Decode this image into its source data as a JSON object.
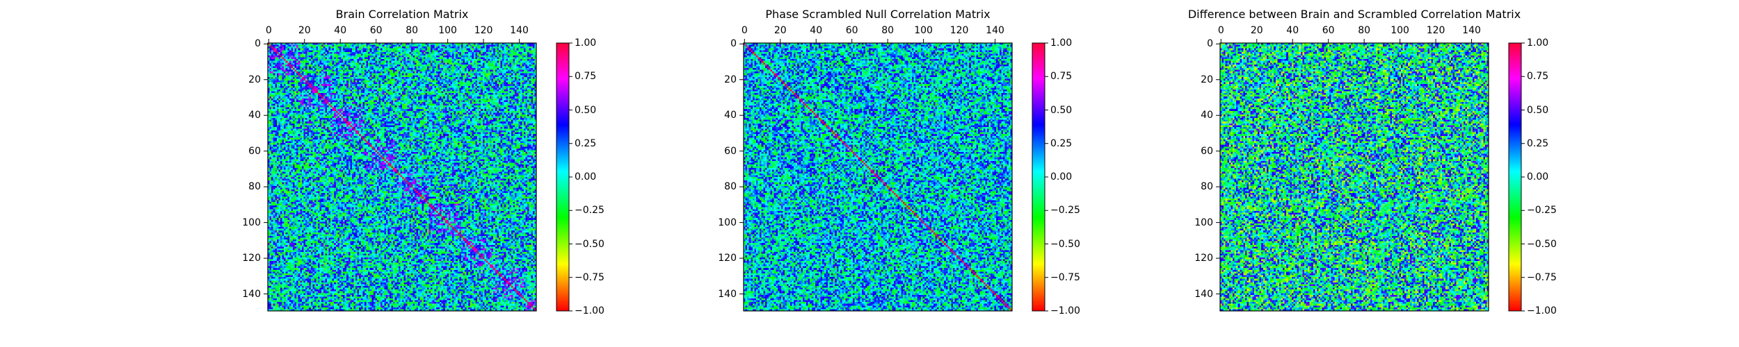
{
  "chart_data": [
    {
      "type": "heatmap",
      "title": "Brain Correlation Matrix",
      "x_ticks": [
        "0",
        "20",
        "40",
        "60",
        "80",
        "100",
        "120",
        "140"
      ],
      "y_ticks": [
        "0",
        "20",
        "40",
        "60",
        "80",
        "100",
        "120",
        "140"
      ],
      "colorbar_ticks": [
        "1.00",
        "0.75",
        "0.50",
        "0.25",
        "0.00",
        "−0.25",
        "−0.50",
        "−0.75",
        "−1.00"
      ],
      "xlim": [
        0,
        150
      ],
      "ylim": [
        150,
        0
      ],
      "value_range": [
        -1,
        1
      ],
      "matrix_size": 150,
      "diagonal_value": 1.0,
      "colormap": "hsv",
      "x_axis_position": "top",
      "grid": false
    },
    {
      "type": "heatmap",
      "title": "Phase Scrambled Null Correlation Matrix",
      "x_ticks": [
        "0",
        "20",
        "40",
        "60",
        "80",
        "100",
        "120",
        "140"
      ],
      "y_ticks": [
        "0",
        "20",
        "40",
        "60",
        "80",
        "100",
        "120",
        "140"
      ],
      "colorbar_ticks": [
        "1.00",
        "0.75",
        "0.50",
        "0.25",
        "0.00",
        "−0.25",
        "−0.50",
        "−0.75",
        "−1.00"
      ],
      "xlim": [
        0,
        150
      ],
      "ylim": [
        150,
        0
      ],
      "value_range": [
        -1,
        1
      ],
      "matrix_size": 150,
      "diagonal_value": 1.0,
      "colormap": "hsv",
      "x_axis_position": "top",
      "grid": false
    },
    {
      "type": "heatmap",
      "title": "Difference between Brain and Scrambled Correlation Matrix",
      "x_ticks": [
        "0",
        "20",
        "40",
        "60",
        "80",
        "100",
        "120",
        "140"
      ],
      "y_ticks": [
        "0",
        "20",
        "40",
        "60",
        "80",
        "100",
        "120",
        "140"
      ],
      "colorbar_ticks": [
        "1.00",
        "0.75",
        "0.50",
        "0.25",
        "0.00",
        "−0.25",
        "−0.50",
        "−0.75",
        "−1.00"
      ],
      "xlim": [
        0,
        150
      ],
      "ylim": [
        150,
        0
      ],
      "value_range": [
        -1,
        1
      ],
      "matrix_size": 150,
      "diagonal_value": 0.0,
      "colormap": "hsv",
      "x_axis_position": "top",
      "grid": false
    }
  ]
}
